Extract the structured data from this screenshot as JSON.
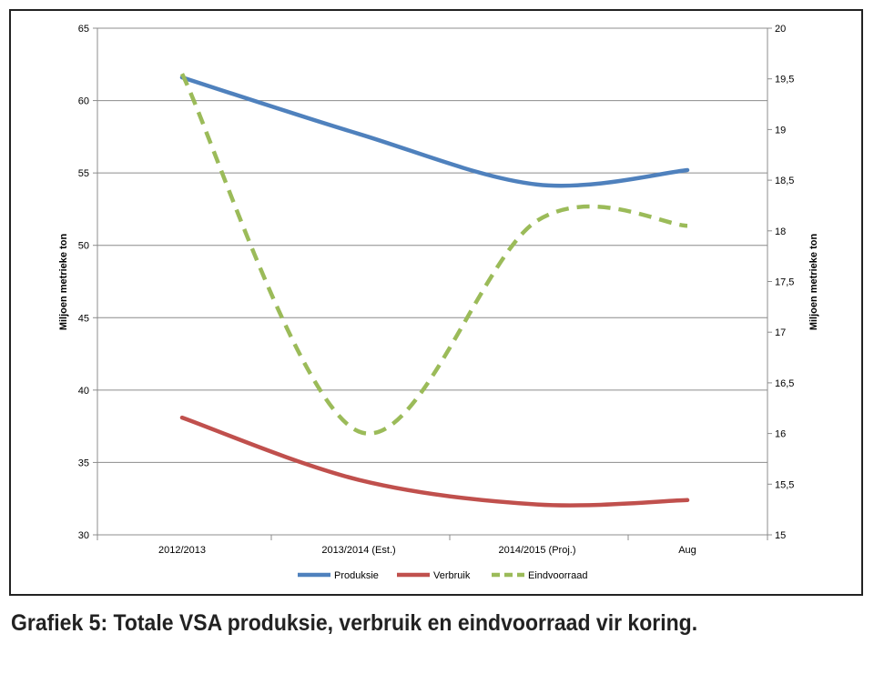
{
  "caption": "Grafiek 5: Totale VSA produksie, verbruik en eindvoorraad vir koring.",
  "chart_data": {
    "type": "line",
    "categories": [
      "2012/2013",
      "2013/2014 (Est.)",
      "2014/2015 (Proj.)",
      "Aug"
    ],
    "ylabel": "Miljoen metrieke ton",
    "y2label": "Miljoen metrieke ton",
    "ylim": [
      30,
      65
    ],
    "y2lim": [
      15,
      20
    ],
    "yticks": [
      "30",
      "35",
      "40",
      "45",
      "50",
      "55",
      "60",
      "65"
    ],
    "y2ticks": [
      "15",
      "15,5",
      "16",
      "16,5",
      "17",
      "17,5",
      "18",
      "18,5",
      "19",
      "19,5",
      "20"
    ],
    "grid": true,
    "legend_position": "bottom",
    "series": [
      {
        "name": "Produksie",
        "axis": "left",
        "color": "#4f81bd",
        "dash": "solid",
        "values": [
          61.6,
          57.7,
          54.2,
          55.2
        ]
      },
      {
        "name": "Verbruik",
        "axis": "left",
        "color": "#c0504d",
        "dash": "solid",
        "values": [
          38.1,
          33.8,
          32.1,
          32.4
        ]
      },
      {
        "name": "Eindvoorraad",
        "axis": "right",
        "color": "#9bbb59",
        "dash": "dashed",
        "values": [
          19.55,
          16.02,
          18.1,
          18.05
        ]
      }
    ]
  }
}
